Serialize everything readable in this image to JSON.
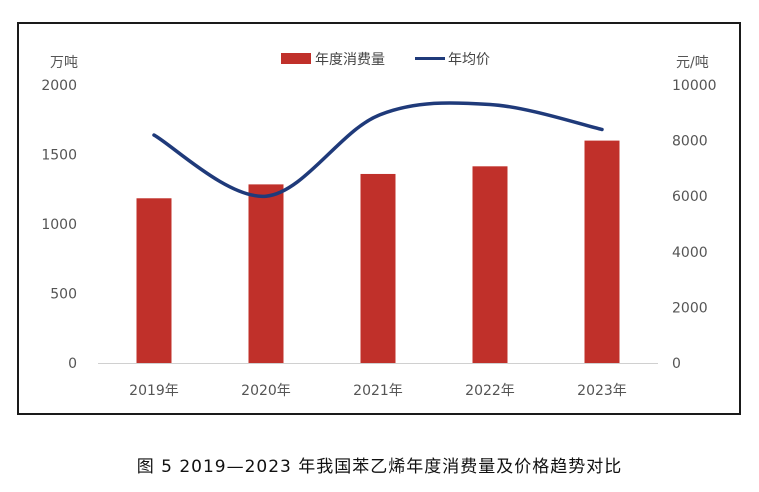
{
  "caption": "图 5  2019—2023 年我国苯乙烯年度消费量及价格趋势对比",
  "chart_data": {
    "type": "bar+line",
    "categories": [
      "2019年",
      "2020年",
      "2021年",
      "2022年",
      "2023年"
    ],
    "series": [
      {
        "name": "年度消费量",
        "type": "bar",
        "axis": "left",
        "color": "#c0302a",
        "values": [
          1185,
          1285,
          1360,
          1415,
          1600
        ]
      },
      {
        "name": "年均价",
        "type": "line",
        "axis": "right",
        "color": "#1f3a7a",
        "values": [
          8200,
          6000,
          8900,
          9300,
          8400
        ]
      }
    ],
    "y_left": {
      "unit": "万吨",
      "ylim": [
        0,
        2000
      ],
      "ticks": [
        0,
        500,
        1000,
        1500,
        2000
      ]
    },
    "y_right": {
      "unit": "元/吨",
      "ylim": [
        0,
        10000
      ],
      "ticks": [
        0,
        2000,
        4000,
        6000,
        8000,
        10000
      ]
    },
    "grid": false,
    "legend_position": "top-center"
  }
}
